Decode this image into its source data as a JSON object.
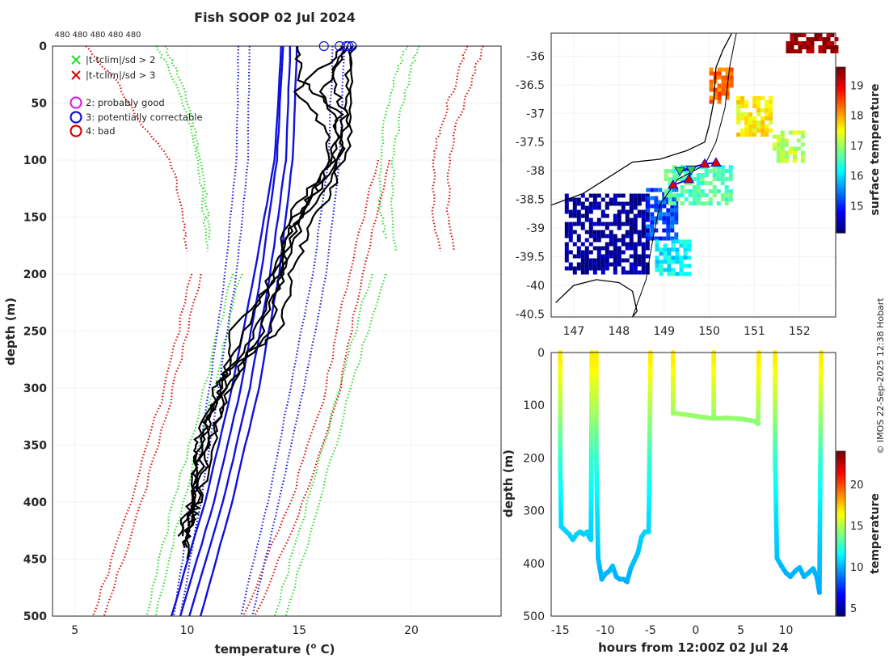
{
  "figure": {
    "title": "Fish SOOP 02 Jul 2024",
    "credit": "© IMOS 22-Sep-2025 12:38 Hobart"
  },
  "chart_data": [
    {
      "id": "profile",
      "type": "line",
      "title": "Fish SOOP 02 Jul 2024",
      "xlabel": "temperature (",
      "xlabel_sup": "o",
      "xlabel_tail": " C)",
      "ylabel": "depth (m)",
      "xlim": [
        4,
        24
      ],
      "ylim": [
        0,
        500
      ],
      "y_reversed": true,
      "grid": true,
      "xticks": [
        5,
        10,
        15,
        20
      ],
      "yticks": [
        0,
        50,
        100,
        150,
        200,
        250,
        300,
        350,
        400,
        450,
        500
      ],
      "top_labels": [
        "480",
        "480",
        "480",
        "480",
        "480"
      ],
      "legend": {
        "position": "top-left",
        "entries": [
          {
            "symbol": "x",
            "color": "#22dd22",
            "label": "|t-tclim|/sd > 2"
          },
          {
            "symbol": "x",
            "color": "#dd0000",
            "label": "|t-tclim|/sd > 3"
          },
          {
            "symbol": "o",
            "color": "#dd22dd",
            "label": "2: probably good"
          },
          {
            "symbol": "o",
            "color": "#1111dd",
            "label": "3: potentially correctable"
          },
          {
            "symbol": "o",
            "color": "#dd0000",
            "label": "4: bad"
          }
        ]
      },
      "surface_markers": [
        16.1,
        16.8,
        17.1,
        17.2,
        17.35
      ],
      "climatology": {
        "blue_solid": [
          {
            "depth": [
              0,
              100,
              200,
              300,
              400,
              500
            ],
            "temp": [
              14.3,
              14.0,
              13.3,
              12.4,
              11.2,
              9.7
            ]
          },
          {
            "depth": [
              0,
              100,
              200,
              300,
              400,
              500
            ],
            "temp": [
              14.6,
              14.4,
              13.7,
              12.8,
              11.6,
              10.1
            ]
          },
          {
            "depth": [
              0,
              100,
              200,
              300,
              400,
              500
            ],
            "temp": [
              14.9,
              14.7,
              14.1,
              13.2,
              12.0,
              10.6
            ]
          },
          {
            "depth": [
              0,
              100,
              200,
              300,
              400,
              500
            ],
            "temp": [
              14.2,
              13.9,
              13.0,
              12.0,
              10.8,
              9.3
            ]
          }
        ],
        "blue_dotted": [
          {
            "depth": [
              0,
              100,
              200,
              300,
              400,
              500
            ],
            "temp": [
              12.8,
              12.7,
              12.2,
              11.4,
              10.6,
              9.7
            ]
          },
          {
            "depth": [
              0,
              100,
              200,
              300,
              400,
              500
            ],
            "temp": [
              16.5,
              16.3,
              15.6,
              14.6,
              13.6,
              12.4
            ]
          },
          {
            "depth": [
              0,
              100,
              200,
              300,
              400,
              500
            ],
            "temp": [
              12.3,
              12.2,
              11.7,
              11.0,
              10.2,
              9.4
            ]
          },
          {
            "depth": [
              0,
              100,
              200,
              300,
              400,
              500
            ],
            "temp": [
              17.0,
              16.8,
              16.2,
              15.2,
              14.1,
              12.9
            ]
          }
        ],
        "green_dotted": [
          {
            "depth": [
              0,
              20,
              60,
              100,
              140,
              170
            ],
            "temp": [
              9.0,
              9.5,
              10.2,
              10.6,
              10.9,
              11.0
            ]
          },
          {
            "depth": [
              0,
              20,
              60,
              100,
              140,
              170
            ],
            "temp": [
              19.8,
              19.4,
              18.8,
              18.6,
              18.6,
              18.9
            ]
          },
          {
            "depth": [
              0,
              20,
              60,
              100,
              140,
              180
            ],
            "temp": [
              20.3,
              20.0,
              19.5,
              19.2,
              19.1,
              19.3
            ]
          },
          {
            "depth": [
              0,
              20,
              60,
              100,
              140,
              180
            ],
            "temp": [
              8.6,
              9.2,
              10.0,
              10.5,
              10.7,
              10.9
            ]
          },
          {
            "depth": [
              200,
              300,
              400,
              500
            ],
            "temp": [
              12.0,
              10.8,
              9.4,
              8.2
            ]
          },
          {
            "depth": [
              200,
              300,
              400,
              500
            ],
            "temp": [
              12.4,
              11.2,
              9.8,
              8.6
            ]
          },
          {
            "depth": [
              200,
              300,
              400,
              500
            ],
            "temp": [
              18.2,
              16.8,
              15.4,
              13.9
            ]
          },
          {
            "depth": [
              200,
              300,
              400,
              500
            ],
            "temp": [
              18.8,
              17.3,
              15.9,
              14.4
            ]
          }
        ],
        "red_dotted": [
          {
            "depth": [
              0,
              30,
              70,
              100,
              150,
              180
            ],
            "temp": [
              5.5,
              6.8,
              8.0,
              9.3,
              9.8,
              10.0
            ]
          },
          {
            "depth": [
              0,
              30,
              70,
              100,
              150,
              180
            ],
            "temp": [
              22.5,
              22.0,
              21.3,
              21.0,
              21.0,
              21.3
            ]
          },
          {
            "depth": [
              0,
              30,
              70,
              100,
              150,
              180
            ],
            "temp": [
              23.2,
              22.7,
              22.0,
              21.7,
              21.6,
              21.9
            ]
          },
          {
            "depth": [
              200,
              300,
              400,
              500
            ],
            "temp": [
              10.2,
              9.0,
              7.5,
              5.8
            ]
          },
          {
            "depth": [
              200,
              300,
              400,
              500
            ],
            "temp": [
              10.6,
              9.4,
              8.0,
              6.3
            ]
          },
          {
            "depth": [
              100,
              200,
              300,
              400,
              500
            ],
            "temp": [
              18.5,
              17.2,
              16.2,
              14.6,
              12.5
            ]
          },
          {
            "depth": [
              100,
              200,
              300,
              400,
              500
            ],
            "temp": [
              19.0,
              17.8,
              16.8,
              15.2,
              13.0
            ]
          }
        ]
      },
      "profiles": [
        {
          "depth": [
            0,
            30,
            60,
            100,
            150,
            200,
            250,
            300,
            330,
            360,
            400,
            430
          ],
          "temp": [
            14.8,
            15.1,
            16.8,
            16.5,
            14.5,
            14.0,
            13.0,
            11.5,
            10.8,
            10.5,
            10.2,
            9.8
          ]
        },
        {
          "depth": [
            0,
            30,
            60,
            100,
            150,
            200,
            250,
            300,
            350,
            400,
            440
          ],
          "temp": [
            17.0,
            16.5,
            17.0,
            16.8,
            15.0,
            14.2,
            13.3,
            11.9,
            11.0,
            10.4,
            10.0
          ]
        },
        {
          "depth": [
            0,
            40,
            80,
            120,
            160,
            200,
            250,
            300,
            350,
            400,
            450
          ],
          "temp": [
            17.2,
            16.0,
            16.9,
            15.8,
            14.7,
            13.8,
            12.5,
            11.4,
            10.6,
            10.2,
            10.0
          ]
        },
        {
          "depth": [
            0,
            40,
            80,
            120,
            160,
            200,
            250,
            280,
            300,
            350,
            400,
            440
          ],
          "temp": [
            17.3,
            17.1,
            17.0,
            16.6,
            15.5,
            14.6,
            14.2,
            12.0,
            11.3,
            10.8,
            10.3,
            9.9
          ]
        },
        {
          "depth": [
            0,
            50,
            100,
            150,
            200,
            250,
            300,
            340,
            360,
            400,
            430
          ],
          "temp": [
            17.4,
            17.3,
            17.1,
            15.2,
            14.3,
            13.6,
            11.7,
            10.5,
            10.4,
            10.1,
            9.6
          ]
        },
        {
          "depth": [
            0,
            40,
            80,
            120,
            150,
            200,
            250,
            300,
            350,
            400,
            420
          ],
          "temp": [
            17.1,
            14.9,
            16.4,
            16.0,
            14.8,
            14.1,
            12.0,
            11.6,
            11.2,
            10.5,
            10.1
          ]
        }
      ]
    },
    {
      "id": "map",
      "type": "heatmap",
      "xlim": [
        146.5,
        152.8
      ],
      "ylim": [
        -40.55,
        -35.6
      ],
      "xticks": [
        147,
        148,
        149,
        150,
        151,
        152
      ],
      "yticks": [
        -36,
        -36.5,
        -37,
        -37.5,
        -38,
        -38.5,
        -39,
        -39.5,
        -40,
        -40.5
      ],
      "colorbar_label": "surface temperature",
      "colorbar_ticks": [
        15,
        16,
        17,
        18,
        19
      ],
      "colorbar_range": [
        14.1,
        19.6
      ],
      "patches": [
        {
          "lon": [
            146.8,
            148.6
          ],
          "lat": [
            -39.8,
            -38.4
          ],
          "value": 14.2
        },
        {
          "lon": [
            148.6,
            149.3
          ],
          "lat": [
            -39.2,
            -38.3
          ],
          "value": 15.2
        },
        {
          "lon": [
            148.8,
            149.6
          ],
          "lat": [
            -39.8,
            -39.2
          ],
          "value": 16.1
        },
        {
          "lon": [
            149.0,
            150.5
          ],
          "lat": [
            -38.6,
            -37.9
          ],
          "value": 16.6
        },
        {
          "lon": [
            150.6,
            151.4
          ],
          "lat": [
            -37.4,
            -36.7
          ],
          "value": 17.6
        },
        {
          "lon": [
            151.4,
            152.1
          ],
          "lat": [
            -37.8,
            -37.3
          ],
          "value": 17.2
        },
        {
          "lon": [
            150.0,
            150.5
          ],
          "lat": [
            -36.8,
            -36.2
          ],
          "value": 18.4
        },
        {
          "lon": [
            151.7,
            152.8
          ],
          "lat": [
            -35.95,
            -35.6
          ],
          "value": 19.5
        }
      ],
      "track_stations": [
        {
          "lon": 149.2,
          "lat": -38.25,
          "symbol": "triangle-up",
          "color": "#dd0000"
        },
        {
          "lon": 149.55,
          "lat": -38.15,
          "symbol": "triangle-up",
          "color": "#dd0000"
        },
        {
          "lon": 149.6,
          "lat": -37.98,
          "symbol": "triangle-down",
          "color": "#22dd22"
        },
        {
          "lon": 149.35,
          "lat": -38.0,
          "symbol": "triangle-down",
          "color": "#22dd22"
        },
        {
          "lon": 149.9,
          "lat": -37.88,
          "symbol": "triangle-up",
          "color": "#dd0000"
        },
        {
          "lon": 150.15,
          "lat": -37.86,
          "symbol": "triangle-up",
          "color": "#dd0000"
        }
      ]
    },
    {
      "id": "timeseries",
      "type": "scatter",
      "xlabel": "hours from 12:00Z 02 Jul 24",
      "ylabel": "depth (m)",
      "xlim": [
        -16,
        15.5
      ],
      "ylim": [
        0,
        500
      ],
      "y_reversed": true,
      "xticks": [
        -15,
        -10,
        -5,
        0,
        5,
        10
      ],
      "yticks": [
        0,
        100,
        200,
        300,
        400,
        500
      ],
      "colorbar_label": "temperature",
      "colorbar_ticks": [
        5,
        10,
        15,
        20
      ],
      "colorbar_range": [
        4,
        24
      ],
      "casts": [
        {
          "hours": [
            -15.0,
            -15.0,
            -14.9,
            -14.6,
            -14.3,
            -14.0,
            -13.6,
            -13.2,
            -12.8,
            -12.4,
            -12.0,
            -11.8,
            -11.6,
            -11.5
          ],
          "depth": [
            0,
            200,
            330,
            335,
            340,
            345,
            355,
            345,
            340,
            345,
            340,
            350,
            355,
            0
          ]
        },
        {
          "hours": [
            -11.0,
            -11.0,
            -10.8,
            -10.4,
            -10.0,
            -9.6,
            -9.2,
            -8.8,
            -8.4,
            -8.0,
            -7.6,
            -7.2,
            -6.8,
            -6.4,
            -6.0,
            -5.6,
            -5.2,
            -5.0
          ],
          "depth": [
            0,
            200,
            390,
            430,
            420,
            415,
            405,
            425,
            430,
            430,
            435,
            410,
            395,
            380,
            350,
            340,
            340,
            0
          ]
        },
        {
          "hours": [
            -2.5,
            -2.5,
            -2.5,
            -1.0,
            0.5,
            2.0,
            3.5,
            5.0,
            6.5,
            6.9,
            7.0
          ],
          "depth": [
            0,
            60,
            115,
            118,
            122,
            125,
            124,
            126,
            130,
            135,
            0
          ]
        },
        {
          "hours": [
            2.0,
            2.0,
            2.0
          ],
          "depth": [
            0,
            60,
            125
          ]
        },
        {
          "hours": [
            8.8,
            8.8,
            9.0,
            9.5,
            10.0,
            10.5,
            11.0,
            11.5,
            12.0,
            12.5,
            13.0,
            13.4,
            13.7,
            13.9
          ],
          "depth": [
            0,
            200,
            390,
            405,
            418,
            425,
            415,
            408,
            425,
            418,
            410,
            425,
            455,
            0
          ]
        }
      ]
    }
  ]
}
